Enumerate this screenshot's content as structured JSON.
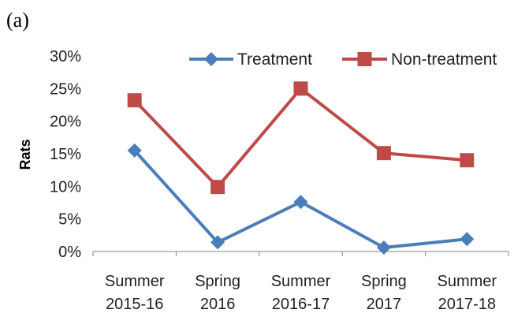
{
  "panel_label": "(a)",
  "chart_data": {
    "type": "line",
    "title": "",
    "xlabel": "",
    "ylabel": "Rats",
    "categories": [
      [
        "Summer",
        "2015-16"
      ],
      [
        "Spring",
        "2016"
      ],
      [
        "Summer",
        "2016-17"
      ],
      [
        "Spring",
        "2017"
      ],
      [
        "Summer",
        "2017-18"
      ]
    ],
    "ylim": [
      0,
      30
    ],
    "yticks": [
      "0%",
      "5%",
      "10%",
      "15%",
      "20%",
      "25%",
      "30%"
    ],
    "grid": false,
    "legend_position": "top",
    "series": [
      {
        "name": "Treatment",
        "values": [
          15.5,
          1.4,
          7.6,
          0.6,
          1.9
        ],
        "color": "#4a7ebb",
        "marker": "diamond"
      },
      {
        "name": "Non-treatment",
        "values": [
          23.2,
          9.9,
          25.0,
          15.1,
          14.0
        ],
        "color": "#be4b48",
        "marker": "square"
      }
    ]
  }
}
